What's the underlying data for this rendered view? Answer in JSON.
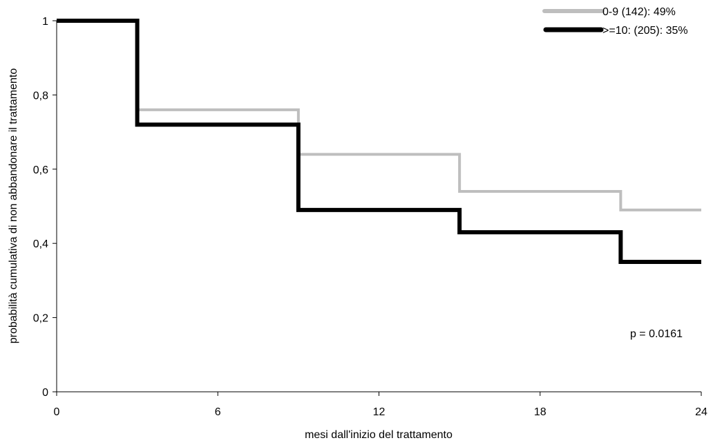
{
  "chart_data": {
    "type": "line",
    "step": true,
    "title": "",
    "xlabel": "mesi dall'inizio del trattamento",
    "ylabel": "probabilità cumulativa di non abbandonare il trattamento",
    "xlim": [
      0,
      24
    ],
    "ylim": [
      0,
      1
    ],
    "xticks": [
      0,
      6,
      12,
      18,
      24
    ],
    "xtick_labels": [
      "0",
      "6",
      "12",
      "18",
      "24"
    ],
    "yticks": [
      0,
      0.2,
      0.4,
      0.6,
      0.8,
      1
    ],
    "ytick_labels": [
      "0",
      "0,2",
      "0,4",
      "0,6",
      "0,8",
      "1"
    ],
    "grid": false,
    "legend_position": "top-right",
    "annotation": "p = 0.0161",
    "series": [
      {
        "name": "0-9 (142): 49%",
        "color": "#bebebe",
        "x": [
          0,
          3,
          9,
          15,
          21,
          24
        ],
        "y": [
          1,
          0.76,
          0.64,
          0.54,
          0.49,
          0.49
        ]
      },
      {
        "name": ">=10: (205): 35%",
        "color": "#000000",
        "x": [
          0,
          3,
          9,
          15,
          21,
          24
        ],
        "y": [
          1,
          0.72,
          0.49,
          0.43,
          0.35,
          0.35
        ]
      }
    ]
  }
}
